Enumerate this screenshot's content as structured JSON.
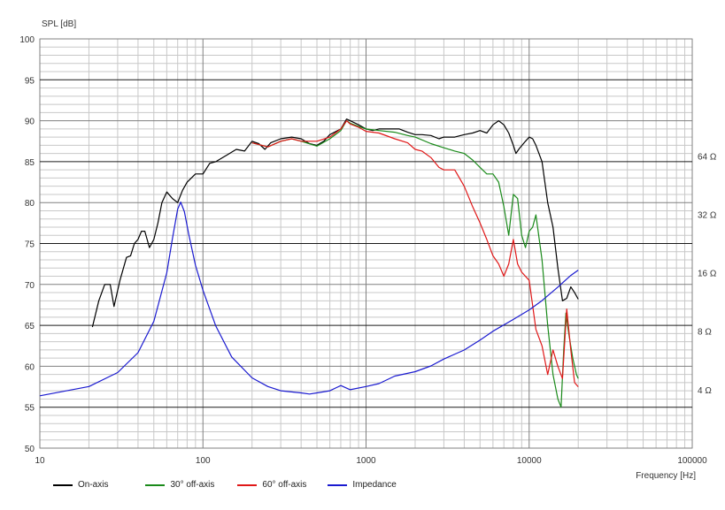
{
  "chart_data": {
    "type": "line",
    "title": "",
    "ylabel": "SPL [dB]",
    "xlabel": "Frequency [Hz]",
    "xscale": "log",
    "xlim": [
      10,
      100000
    ],
    "ylim": [
      50,
      100
    ],
    "y2lim_ohm": [
      2,
      256
    ],
    "y2scale": "log2",
    "grid": true,
    "legend_position": "bottom",
    "x_ticks": [
      10,
      100,
      1000,
      10000,
      100000
    ],
    "x_tick_labels": [
      "10",
      "100",
      "1000",
      "10000",
      "100000"
    ],
    "y_ticks": [
      50,
      55,
      60,
      65,
      70,
      75,
      80,
      85,
      90,
      95,
      100
    ],
    "y_tick_labels": [
      "50",
      "55",
      "60",
      "65",
      "70",
      "75",
      "80",
      "85",
      "90",
      "95",
      "100"
    ],
    "y2_ticks": [
      4,
      8,
      16,
      32,
      64
    ],
    "y2_tick_labels": [
      "4 Ω",
      "8 Ω",
      "16 Ω",
      "32 Ω",
      "64 Ω"
    ],
    "series": [
      {
        "name": "On-axis",
        "color": "#000000",
        "axis": "spl",
        "points": [
          [
            21,
            64.8
          ],
          [
            23,
            68
          ],
          [
            25,
            70
          ],
          [
            27,
            70
          ],
          [
            28.5,
            67.3
          ],
          [
            31,
            70.5
          ],
          [
            34,
            73.3
          ],
          [
            36,
            73.5
          ],
          [
            38,
            75
          ],
          [
            40,
            75.5
          ],
          [
            42,
            76.5
          ],
          [
            44,
            76.5
          ],
          [
            47,
            74.5
          ],
          [
            50,
            75.5
          ],
          [
            53,
            77.5
          ],
          [
            56,
            80
          ],
          [
            60,
            81.3
          ],
          [
            65,
            80.5
          ],
          [
            70,
            80
          ],
          [
            75,
            81.5
          ],
          [
            80,
            82.5
          ],
          [
            90,
            83.5
          ],
          [
            100,
            83.5
          ],
          [
            110,
            84.8
          ],
          [
            120,
            85
          ],
          [
            140,
            85.8
          ],
          [
            160,
            86.5
          ],
          [
            180,
            86.3
          ],
          [
            200,
            87.5
          ],
          [
            220,
            87.2
          ],
          [
            240,
            86.5
          ],
          [
            260,
            87.3
          ],
          [
            300,
            87.8
          ],
          [
            350,
            88
          ],
          [
            400,
            87.8
          ],
          [
            450,
            87.2
          ],
          [
            500,
            87
          ],
          [
            550,
            87.5
          ],
          [
            600,
            88.3
          ],
          [
            700,
            89
          ],
          [
            760,
            90.2
          ],
          [
            800,
            90
          ],
          [
            900,
            89.5
          ],
          [
            1000,
            89
          ],
          [
            1100,
            88.8
          ],
          [
            1200,
            89
          ],
          [
            1400,
            89
          ],
          [
            1600,
            89
          ],
          [
            1800,
            88.6
          ],
          [
            2000,
            88.3
          ],
          [
            2200,
            88.3
          ],
          [
            2500,
            88.2
          ],
          [
            2800,
            87.8
          ],
          [
            3000,
            88
          ],
          [
            3500,
            88
          ],
          [
            4000,
            88.3
          ],
          [
            4500,
            88.5
          ],
          [
            5000,
            88.8
          ],
          [
            5500,
            88.5
          ],
          [
            6000,
            89.5
          ],
          [
            6500,
            90
          ],
          [
            7000,
            89.5
          ],
          [
            7500,
            88.5
          ],
          [
            8000,
            87
          ],
          [
            8300,
            86
          ],
          [
            8700,
            86.6
          ],
          [
            9500,
            87.5
          ],
          [
            10000,
            88
          ],
          [
            10500,
            87.8
          ],
          [
            11000,
            87
          ],
          [
            12000,
            85
          ],
          [
            13000,
            80
          ],
          [
            14000,
            77
          ],
          [
            15000,
            72
          ],
          [
            16000,
            68
          ],
          [
            17000,
            68.3
          ],
          [
            18000,
            69.7
          ],
          [
            19000,
            69
          ],
          [
            20000,
            68.2
          ]
        ]
      },
      {
        "name": "30° off-axis",
        "color": "#1a8a1a",
        "axis": "spl",
        "points": [
          [
            200,
            87.3
          ],
          [
            250,
            86.8
          ],
          [
            300,
            87.5
          ],
          [
            350,
            87.8
          ],
          [
            400,
            87.5
          ],
          [
            500,
            86.9
          ],
          [
            600,
            87.8
          ],
          [
            700,
            88.8
          ],
          [
            760,
            90
          ],
          [
            800,
            89.7
          ],
          [
            900,
            89.3
          ],
          [
            1000,
            89
          ],
          [
            1200,
            88.8
          ],
          [
            1500,
            88.6
          ],
          [
            1800,
            88.2
          ],
          [
            2000,
            88
          ],
          [
            2500,
            87.2
          ],
          [
            3000,
            86.7
          ],
          [
            3500,
            86.3
          ],
          [
            4000,
            86
          ],
          [
            4500,
            85.2
          ],
          [
            5000,
            84.3
          ],
          [
            5500,
            83.5
          ],
          [
            6000,
            83.5
          ],
          [
            6500,
            82.5
          ],
          [
            7000,
            79.5
          ],
          [
            7500,
            76
          ],
          [
            8000,
            81
          ],
          [
            8500,
            80.5
          ],
          [
            9000,
            76
          ],
          [
            9500,
            74.5
          ],
          [
            10000,
            76.5
          ],
          [
            10500,
            77
          ],
          [
            11000,
            78.5
          ],
          [
            12000,
            73
          ],
          [
            13000,
            65
          ],
          [
            14000,
            59
          ],
          [
            15000,
            56
          ],
          [
            15700,
            55
          ],
          [
            16300,
            62
          ],
          [
            16800,
            66.5
          ],
          [
            17500,
            64
          ],
          [
            18500,
            61
          ],
          [
            19500,
            59
          ],
          [
            20000,
            58.5
          ]
        ]
      },
      {
        "name": "60° off-axis",
        "color": "#e01818",
        "axis": "spl",
        "points": [
          [
            200,
            87.3
          ],
          [
            250,
            86.8
          ],
          [
            300,
            87.5
          ],
          [
            350,
            87.8
          ],
          [
            400,
            87.5
          ],
          [
            500,
            87.5
          ],
          [
            600,
            88
          ],
          [
            700,
            89
          ],
          [
            760,
            90
          ],
          [
            800,
            89.6
          ],
          [
            900,
            89.2
          ],
          [
            1000,
            88.7
          ],
          [
            1200,
            88.5
          ],
          [
            1500,
            87.8
          ],
          [
            1800,
            87.3
          ],
          [
            2000,
            86.5
          ],
          [
            2200,
            86.3
          ],
          [
            2500,
            85.5
          ],
          [
            2800,
            84.3
          ],
          [
            3000,
            84
          ],
          [
            3500,
            84
          ],
          [
            4000,
            82
          ],
          [
            4500,
            79.5
          ],
          [
            5000,
            77.5
          ],
          [
            5500,
            75.5
          ],
          [
            6000,
            73.5
          ],
          [
            6500,
            72.5
          ],
          [
            7000,
            71
          ],
          [
            7500,
            72.5
          ],
          [
            8000,
            75.5
          ],
          [
            8500,
            72.5
          ],
          [
            9000,
            71.5
          ],
          [
            10000,
            70.5
          ],
          [
            11000,
            64.5
          ],
          [
            12000,
            62.5
          ],
          [
            13000,
            59
          ],
          [
            14000,
            62
          ],
          [
            15000,
            60
          ],
          [
            16000,
            58.5
          ],
          [
            17000,
            67
          ],
          [
            18000,
            62
          ],
          [
            19000,
            58
          ],
          [
            20000,
            57.5
          ]
        ]
      },
      {
        "name": "Impedance",
        "color": "#1a1ad0",
        "axis": "ohm",
        "points": [
          [
            10,
            3.72
          ],
          [
            20,
            4.15
          ],
          [
            30,
            4.9
          ],
          [
            40,
            6.2
          ],
          [
            50,
            9.0
          ],
          [
            60,
            16
          ],
          [
            65,
            24
          ],
          [
            70,
            34
          ],
          [
            73,
            37
          ],
          [
            77,
            33
          ],
          [
            82,
            25
          ],
          [
            90,
            17.5
          ],
          [
            100,
            13
          ],
          [
            120,
            8.5
          ],
          [
            150,
            5.9
          ],
          [
            200,
            4.6
          ],
          [
            250,
            4.15
          ],
          [
            300,
            3.95
          ],
          [
            400,
            3.85
          ],
          [
            450,
            3.8
          ],
          [
            500,
            3.85
          ],
          [
            600,
            3.95
          ],
          [
            700,
            4.2
          ],
          [
            800,
            4.0
          ],
          [
            1000,
            4.15
          ],
          [
            1200,
            4.3
          ],
          [
            1500,
            4.7
          ],
          [
            2000,
            4.95
          ],
          [
            2500,
            5.3
          ],
          [
            3000,
            5.75
          ],
          [
            4000,
            6.4
          ],
          [
            5000,
            7.2
          ],
          [
            6000,
            8.0
          ],
          [
            8000,
            9.2
          ],
          [
            10000,
            10.3
          ],
          [
            12000,
            11.5
          ],
          [
            15000,
            13.5
          ],
          [
            18000,
            15.5
          ],
          [
            20000,
            16.5
          ]
        ]
      }
    ]
  }
}
